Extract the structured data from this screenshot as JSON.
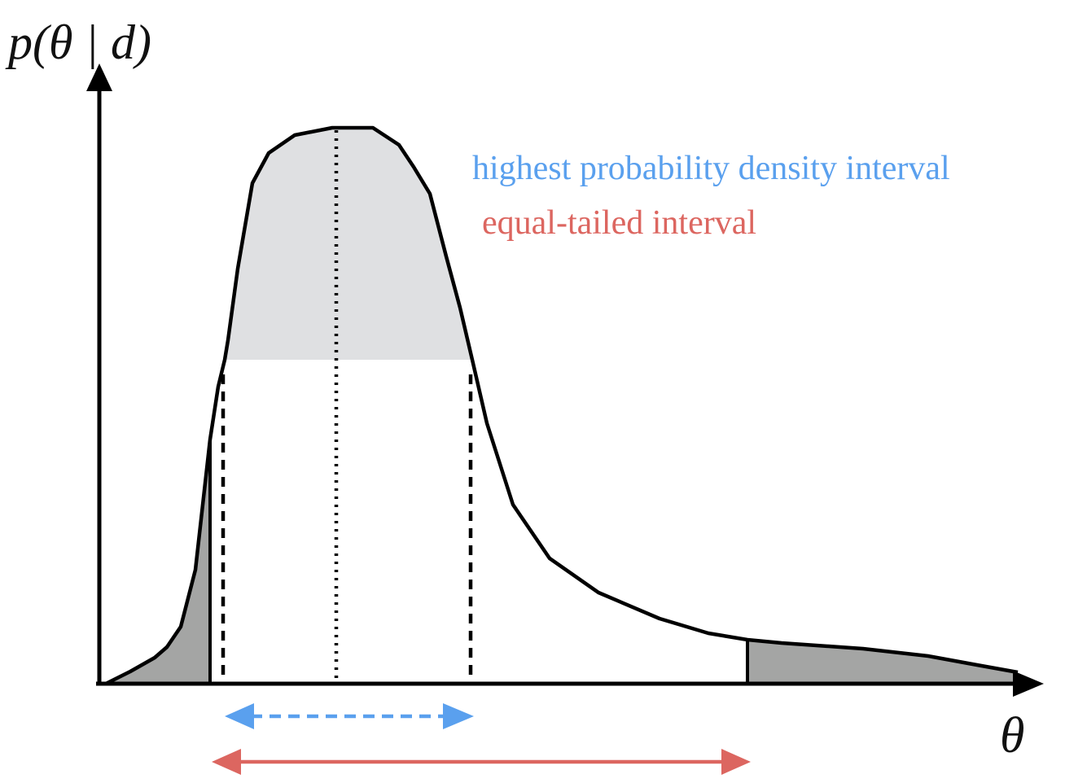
{
  "axes": {
    "y_label": "p(θ | d)",
    "x_label": "θ"
  },
  "legend": {
    "hpd": {
      "label": "highest probability density interval",
      "color": "#5aa0ee"
    },
    "equal_tailed": {
      "label": "equal-tailed interval",
      "color": "#dc6660"
    }
  },
  "colors": {
    "curve": "#000000",
    "hpd_region_fill": "#dfe0e2",
    "tail_fill": "#a4a5a4"
  }
}
